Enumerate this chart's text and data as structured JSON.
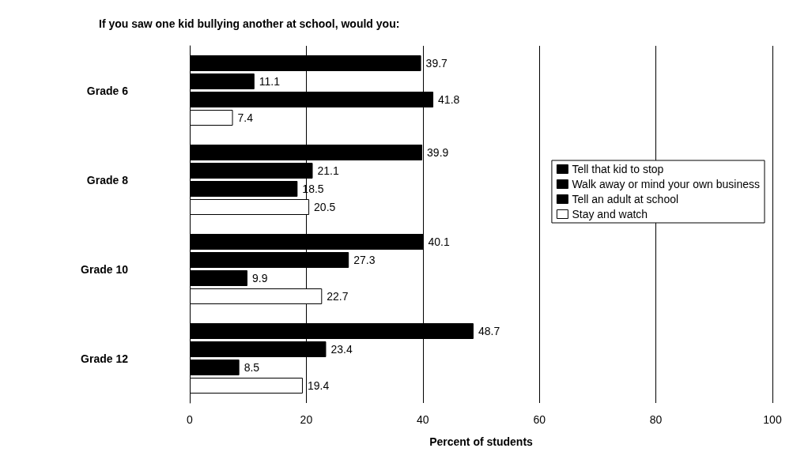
{
  "chart_data": {
    "type": "bar",
    "orientation": "horizontal",
    "title": "If you saw one kid bullying another at school, would you:",
    "xlabel": "Percent of students",
    "categories": [
      "Grade 6",
      "Grade 8",
      "Grade 10",
      "Grade 12"
    ],
    "series": [
      {
        "name": "Tell that kid to stop",
        "color": "#000000",
        "values": [
          39.7,
          39.9,
          40.1,
          48.7
        ]
      },
      {
        "name": "Walk away or mind your own business",
        "color": "#000000",
        "values": [
          11.1,
          21.1,
          27.3,
          23.4
        ]
      },
      {
        "name": "Tell an adult at school",
        "color": "#000000",
        "values": [
          41.8,
          18.5,
          9.9,
          8.5
        ]
      },
      {
        "name": "Stay and watch",
        "color": "#ffffff",
        "values": [
          7.4,
          20.5,
          22.7,
          19.4
        ]
      }
    ],
    "xlim": [
      0,
      100
    ],
    "xticks": [
      0,
      20,
      40,
      60,
      80,
      100
    ],
    "grid": "x",
    "legend": "right",
    "data_labels": true
  }
}
